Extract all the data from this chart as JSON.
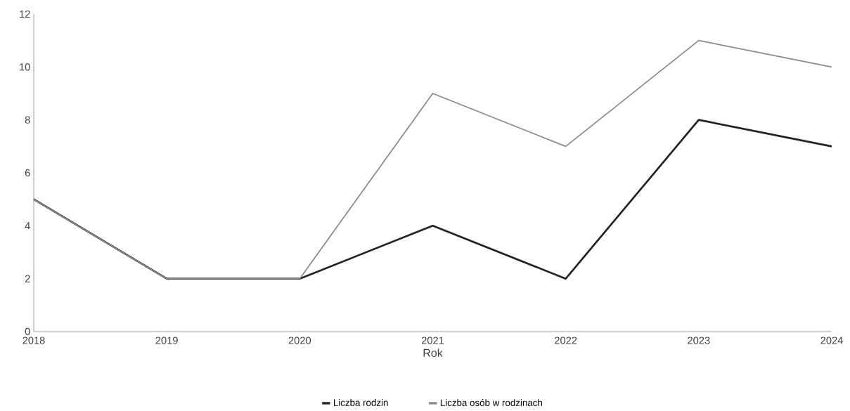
{
  "chart_data": {
    "type": "line",
    "xlabel": "Rok",
    "categories": [
      "2018",
      "2019",
      "2020",
      "2021",
      "2022",
      "2023",
      "2024"
    ],
    "series": [
      {
        "name": "Liczba rodzin",
        "color": "#222222",
        "values": [
          5,
          2,
          2,
          4,
          2,
          8,
          7
        ]
      },
      {
        "name": "Liczba osób w rodzinach",
        "color": "#8a8a8a",
        "values": [
          5,
          2,
          2,
          9,
          7,
          11,
          10
        ]
      }
    ],
    "ylim": [
      0,
      12
    ],
    "yticks": [
      0,
      2,
      4,
      6,
      8,
      10,
      12
    ],
    "grid": false,
    "legend": "bottom",
    "marker": "none",
    "line_style": "solid"
  }
}
